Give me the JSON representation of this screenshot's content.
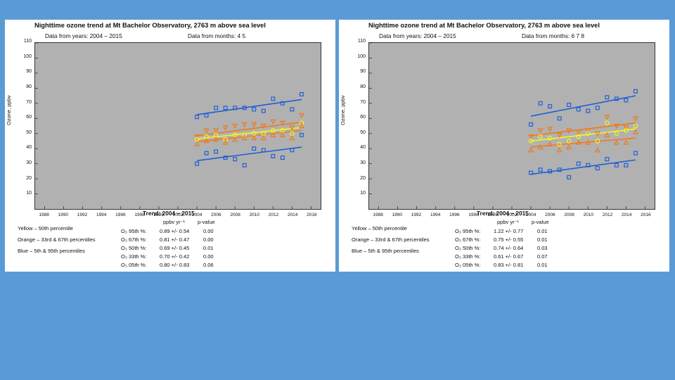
{
  "panels": [
    {
      "title": "Nighttime ozone trend at Mt Bachelor Observatory, 2763 m above sea level",
      "years_text": "Data from years:  2004 – 2015",
      "months_text": "Data from months:  4  5",
      "ylabel": "Ozone, ppbv",
      "legend": [
        "Yellow – 50th percentile",
        "Orange – 33rd & 67th percentiles",
        "Blue   –  5th & 95th percentiles"
      ],
      "trend_title": "Trend:  2004 – 2015",
      "trend_headers": [
        "ppbv yr⁻¹",
        "p-value"
      ],
      "trend_rows": [
        {
          "label": "O₃ 95th %:",
          "value": "0.89 +/- 0.54",
          "p": "0.00"
        },
        {
          "label": "O₃ 67th %:",
          "value": "0.81 +/- 0.47",
          "p": "0.00"
        },
        {
          "label": "O₃ 50th %:",
          "value": "0.69 +/- 0.45",
          "p": "0.01"
        },
        {
          "label": "O₃ 33th %:",
          "value": "0.70 +/- 0.42",
          "p": "0.00"
        },
        {
          "label": "O₃ 05th %:",
          "value": "0.80 +/- 0.83",
          "p": "0.06"
        }
      ]
    },
    {
      "title": "Nighttime ozone trend at Mt Bachelor Observatory, 2763 m above sea level",
      "years_text": "Data from years:  2004 – 2015",
      "months_text": "Data from months:  6  7  8",
      "ylabel": "Ozone, ppbv",
      "legend": [
        "Yellow – 50th percentile",
        "Orange – 33rd & 67th percentiles",
        "Blue   –  5th & 95th percentiles"
      ],
      "trend_title": "Trend:  2004 – 2015",
      "trend_headers": [
        "ppbv yr⁻¹",
        "p-value"
      ],
      "trend_rows": [
        {
          "label": "O₃ 95th %:",
          "value": "1.22 +/- 0.77",
          "p": "0.01"
        },
        {
          "label": "O₃ 67th %:",
          "value": "0.75 +/- 0.55",
          "p": "0.01"
        },
        {
          "label": "O₃ 50th %:",
          "value": "0.74 +/- 0.64",
          "p": "0.03"
        },
        {
          "label": "O₃ 33th %:",
          "value": "0.61 +/- 0.67",
          "p": "0.07"
        },
        {
          "label": "O₃ 05th %:",
          "value": "0.83 +/- 0.81",
          "p": "0.01"
        }
      ]
    }
  ],
  "chart_data": [
    {
      "type": "scatter",
      "xlim": [
        1987,
        2017
      ],
      "ylim": [
        0,
        110
      ],
      "x_ticks": [
        1988,
        1990,
        1992,
        1994,
        1996,
        1998,
        2000,
        2002,
        2004,
        2006,
        2008,
        2010,
        2012,
        2014,
        2016
      ],
      "y_ticks": [
        10,
        20,
        30,
        40,
        50,
        60,
        70,
        80,
        90,
        100,
        110
      ],
      "grid": false,
      "x": [
        2004,
        2005,
        2006,
        2007,
        2008,
        2009,
        2010,
        2011,
        2012,
        2013,
        2014,
        2015
      ],
      "series": [
        {
          "color": "#1f5fd6",
          "marker": "square",
          "values": [
            61,
            62,
            67,
            67,
            67,
            67,
            66,
            65,
            73,
            70,
            66,
            76
          ],
          "trend": [
            62.5,
            72.5
          ]
        },
        {
          "color": "#f07a1a",
          "marker": "triangle-down",
          "values": [
            48,
            52,
            52,
            54,
            55,
            56,
            56,
            55,
            58,
            57,
            54,
            62
          ],
          "trend": [
            48.5,
            57.5
          ]
        },
        {
          "color": "#f5f520",
          "marker": "circle",
          "values": [
            46,
            48,
            49,
            46,
            49,
            49,
            50,
            50,
            52,
            52,
            50,
            57
          ],
          "trend": [
            46.5,
            54
          ]
        },
        {
          "color": "#f07a1a",
          "marker": "triangle-up",
          "values": [
            43,
            45,
            46,
            44,
            46,
            47,
            47,
            47,
            49,
            49,
            47,
            55
          ],
          "trend": [
            44.5,
            52
          ]
        },
        {
          "color": "#1f5fd6",
          "marker": "square",
          "values": [
            30,
            37,
            38,
            34,
            33,
            29,
            40,
            39,
            35,
            34,
            39,
            49
          ],
          "trend": [
            32,
            41
          ]
        }
      ]
    },
    {
      "type": "scatter",
      "xlim": [
        1987,
        2017
      ],
      "ylim": [
        0,
        110
      ],
      "x_ticks": [
        1988,
        1990,
        1992,
        1994,
        1996,
        1998,
        2000,
        2002,
        2004,
        2006,
        2008,
        2010,
        2012,
        2014,
        2016
      ],
      "y_ticks": [
        10,
        20,
        30,
        40,
        50,
        60,
        70,
        80,
        90,
        100,
        110
      ],
      "grid": false,
      "x": [
        2004,
        2005,
        2006,
        2007,
        2008,
        2009,
        2010,
        2011,
        2012,
        2013,
        2014,
        2015
      ],
      "series": [
        {
          "color": "#1f5fd6",
          "marker": "square",
          "values": [
            56,
            70,
            68,
            60,
            69,
            66,
            65,
            67,
            74,
            73,
            72,
            78
          ],
          "trend": [
            61.5,
            75
          ]
        },
        {
          "color": "#f07a1a",
          "marker": "triangle-down",
          "values": [
            48,
            52,
            53,
            49,
            52,
            51,
            52,
            50,
            61,
            55,
            54,
            60
          ],
          "trend": [
            48.5,
            57
          ]
        },
        {
          "color": "#f5f520",
          "marker": "circle",
          "values": [
            45,
            48,
            47,
            43,
            45,
            48,
            50,
            45,
            57,
            50,
            52,
            55
          ],
          "trend": [
            45,
            53
          ]
        },
        {
          "color": "#f07a1a",
          "marker": "triangle-up",
          "values": [
            39,
            41,
            43,
            39,
            41,
            44,
            44,
            39,
            49,
            44,
            44,
            51
          ],
          "trend": [
            41,
            47
          ]
        },
        {
          "color": "#1f5fd6",
          "marker": "square",
          "values": [
            24,
            26,
            25,
            26,
            21,
            30,
            29,
            27,
            33,
            29,
            29,
            37
          ],
          "trend": [
            23,
            32.5
          ]
        }
      ]
    }
  ]
}
